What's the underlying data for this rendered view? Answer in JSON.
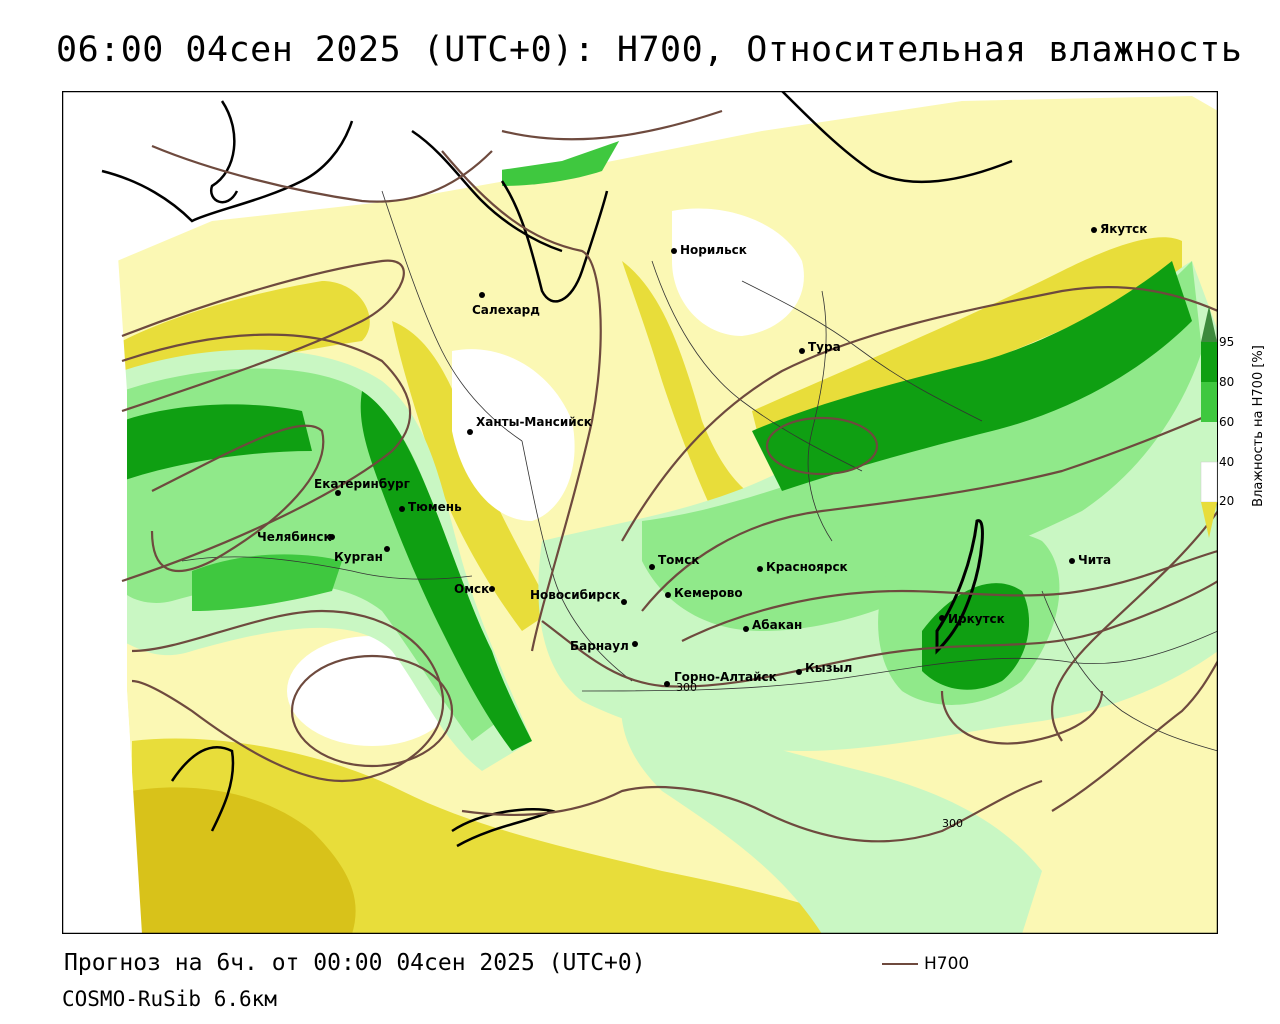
{
  "title": "06:00 04сен 2025 (UTC+0): H700, Относительная влажность",
  "forecast_line": "Прогноз на 6ч. от 00:00 04сен 2025 (UTC+0)",
  "model_line": "COSMO-RuSib 6.6км",
  "legend": {
    "h700_label": "H700",
    "h700_color": "#6e4a3e"
  },
  "colorbar": {
    "title": "Влажность на H700 [%]",
    "ticks": [
      "95",
      "80",
      "60",
      "40",
      "20"
    ],
    "colors": {
      "very_dry": "#d8c21a",
      "dry": "#e8dd3a",
      "moist_low": "#fbf8b4",
      "neutral": "#ffffff",
      "moist": "#c9f7c3",
      "wet": "#90e98a",
      "very_wet": "#3fc83f",
      "saturated": "#0f9f12",
      "extreme": "#3d8a3d"
    }
  },
  "contour_labels": [
    "300",
    "300"
  ],
  "cities": [
    {
      "name": "Якутск"
    },
    {
      "name": "Норильск"
    },
    {
      "name": "Салехард"
    },
    {
      "name": "Тура"
    },
    {
      "name": "Ханты-Мансийск"
    },
    {
      "name": "Екатеринбург"
    },
    {
      "name": "Тюмень"
    },
    {
      "name": "Челябинск"
    },
    {
      "name": "Курган"
    },
    {
      "name": "Омск"
    },
    {
      "name": "Новосибирск"
    },
    {
      "name": "Томск"
    },
    {
      "name": "Кемерово"
    },
    {
      "name": "Красноярск"
    },
    {
      "name": "Барнаул"
    },
    {
      "name": "Абакан"
    },
    {
      "name": "Горно-Алтайск"
    },
    {
      "name": "Кызыл"
    },
    {
      "name": "Иркутск"
    },
    {
      "name": "Чита"
    }
  ]
}
